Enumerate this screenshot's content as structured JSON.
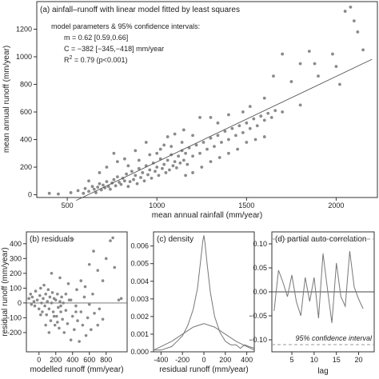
{
  "chart_data": [
    {
      "type": "scatter",
      "title": "(a) ainfall–runoff with linear model fitted by least squares",
      "xlabel": "mean annual rainfall (mm/year)",
      "ylabel": "mean annual runoff (mm/year)",
      "xlim": [
        330,
        2230
      ],
      "ylim": [
        -20,
        1400
      ],
      "xticks": [
        500,
        1000,
        1500,
        2000
      ],
      "yticks": [
        0,
        200,
        400,
        600,
        800,
        1000,
        1200
      ],
      "grid": false,
      "annotation": {
        "header": "model parameters & 95% confidence intervals:",
        "m": "m = 0.62  [0.59,0.66]",
        "c": "C = −382  [−345,−418]  mm/year",
        "r2": "R",
        "r2_sup": "2",
        "r2_rest": " = 0.79  (p<0.001)"
      },
      "fit_line": {
        "slope": 0.62,
        "intercept": -382,
        "x": [
          550,
          2200
        ]
      },
      "point_color": "#8a8a8a",
      "points": [
        [
          400,
          10
        ],
        [
          450,
          5
        ],
        [
          520,
          15
        ],
        [
          560,
          30
        ],
        [
          590,
          10
        ],
        [
          600,
          45
        ],
        [
          620,
          25
        ],
        [
          640,
          60
        ],
        [
          650,
          40
        ],
        [
          660,
          15
        ],
        [
          670,
          55
        ],
        [
          680,
          80
        ],
        [
          690,
          35
        ],
        [
          700,
          70
        ],
        [
          710,
          50
        ],
        [
          720,
          95
        ],
        [
          730,
          60
        ],
        [
          740,
          40
        ],
        [
          750,
          85
        ],
        [
          760,
          110
        ],
        [
          770,
          65
        ],
        [
          780,
          130
        ],
        [
          790,
          90
        ],
        [
          800,
          75
        ],
        [
          810,
          120
        ],
        [
          820,
          100
        ],
        [
          830,
          150
        ],
        [
          840,
          60
        ],
        [
          850,
          95
        ],
        [
          860,
          170
        ],
        [
          870,
          110
        ],
        [
          880,
          140
        ],
        [
          890,
          80
        ],
        [
          900,
          190
        ],
        [
          910,
          125
        ],
        [
          920,
          160
        ],
        [
          930,
          100
        ],
        [
          940,
          210
        ],
        [
          950,
          145
        ],
        [
          960,
          180
        ],
        [
          970,
          120
        ],
        [
          980,
          230
        ],
        [
          990,
          170
        ],
        [
          1000,
          200
        ],
        [
          1010,
          140
        ],
        [
          1020,
          260
        ],
        [
          1030,
          190
        ],
        [
          1040,
          220
        ],
        [
          1050,
          160
        ],
        [
          1060,
          250
        ],
        [
          1070,
          180
        ],
        [
          1080,
          290
        ],
        [
          1090,
          210
        ],
        [
          1100,
          240
        ],
        [
          1110,
          195
        ],
        [
          1120,
          280
        ],
        [
          1130,
          230
        ],
        [
          1140,
          320
        ],
        [
          1150,
          250
        ],
        [
          1160,
          300
        ],
        [
          1170,
          220
        ],
        [
          1180,
          340
        ],
        [
          1200,
          280
        ],
        [
          1220,
          360
        ],
        [
          1240,
          300
        ],
        [
          1260,
          380
        ],
        [
          1280,
          330
        ],
        [
          1300,
          410
        ],
        [
          1320,
          350
        ],
        [
          1340,
          430
        ],
        [
          1360,
          380
        ],
        [
          1380,
          460
        ],
        [
          1400,
          400
        ],
        [
          1420,
          480
        ],
        [
          1440,
          430
        ],
        [
          1460,
          500
        ],
        [
          1480,
          450
        ],
        [
          1500,
          520
        ],
        [
          1520,
          480
        ],
        [
          1540,
          550
        ],
        [
          1560,
          500
        ],
        [
          1580,
          570
        ],
        [
          1600,
          540
        ],
        [
          1620,
          590
        ],
        [
          1640,
          560
        ],
        [
          1660,
          610
        ],
        [
          1700,
          600
        ],
        [
          1750,
          820
        ],
        [
          1800,
          650
        ],
        [
          1850,
          1040
        ],
        [
          1900,
          860
        ],
        [
          1980,
          1020
        ],
        [
          2000,
          930
        ],
        [
          2050,
          1330
        ],
        [
          2080,
          1360
        ],
        [
          2100,
          1260
        ],
        [
          2120,
          1180
        ],
        [
          2150,
          1050
        ],
        [
          1880,
          950
        ],
        [
          2020,
          800
        ],
        [
          760,
          300
        ],
        [
          820,
          260
        ],
        [
          880,
          320
        ],
        [
          940,
          380
        ],
        [
          1000,
          300
        ],
        [
          1040,
          360
        ],
        [
          1060,
          420
        ],
        [
          1100,
          440
        ],
        [
          1150,
          470
        ],
        [
          1200,
          430
        ],
        [
          1240,
          560
        ],
        [
          1300,
          560
        ],
        [
          1340,
          520
        ],
        [
          1400,
          580
        ],
        [
          1480,
          600
        ],
        [
          1520,
          640
        ],
        [
          1600,
          700
        ],
        [
          1650,
          860
        ],
        [
          1700,
          1020
        ],
        [
          1800,
          950
        ],
        [
          620,
          100
        ],
        [
          680,
          160
        ],
        [
          720,
          200
        ],
        [
          780,
          240
        ],
        [
          840,
          210
        ],
        [
          900,
          250
        ],
        [
          960,
          290
        ],
        [
          1020,
          330
        ],
        [
          1080,
          350
        ],
        [
          1140,
          380
        ],
        [
          1160,
          140
        ],
        [
          1200,
          160
        ],
        [
          1250,
          200
        ],
        [
          1300,
          240
        ],
        [
          1350,
          270
        ],
        [
          1400,
          300
        ],
        [
          1450,
          330
        ],
        [
          1500,
          380
        ],
        [
          1550,
          400
        ],
        [
          1600,
          420
        ]
      ]
    },
    {
      "type": "scatter",
      "title": "(b) residuals",
      "xlabel": "modelled runoff (mm/year)",
      "ylabel": "residual runoff (mm/year)",
      "xlim": [
        -150,
        1050
      ],
      "ylim": [
        -330,
        480
      ],
      "xticks": [
        0,
        200,
        400,
        600,
        800
      ],
      "yticks": [
        -200,
        -100,
        0,
        100,
        200,
        300,
        400
      ],
      "point_color": "#8a8a8a",
      "points": [
        [
          -100,
          60
        ],
        [
          -80,
          40
        ],
        [
          -60,
          10
        ],
        [
          -50,
          -20
        ],
        [
          -40,
          80
        ],
        [
          -20,
          20
        ],
        [
          0,
          -40
        ],
        [
          10,
          50
        ],
        [
          20,
          100
        ],
        [
          30,
          0
        ],
        [
          40,
          -60
        ],
        [
          50,
          30
        ],
        [
          60,
          120
        ],
        [
          70,
          -20
        ],
        [
          80,
          60
        ],
        [
          90,
          -80
        ],
        [
          100,
          10
        ],
        [
          110,
          90
        ],
        [
          120,
          -40
        ],
        [
          130,
          40
        ],
        [
          140,
          -120
        ],
        [
          150,
          0
        ],
        [
          160,
          70
        ],
        [
          170,
          -60
        ],
        [
          180,
          30
        ],
        [
          190,
          -150
        ],
        [
          200,
          20
        ],
        [
          210,
          -90
        ],
        [
          220,
          60
        ],
        [
          230,
          -30
        ],
        [
          240,
          -170
        ],
        [
          250,
          10
        ],
        [
          260,
          -60
        ],
        [
          270,
          40
        ],
        [
          280,
          -110
        ],
        [
          290,
          0
        ],
        [
          300,
          -200
        ],
        [
          320,
          -50
        ],
        [
          340,
          -140
        ],
        [
          360,
          20
        ],
        [
          380,
          -250
        ],
        [
          400,
          -90
        ],
        [
          420,
          -180
        ],
        [
          440,
          -20
        ],
        [
          460,
          -120
        ],
        [
          480,
          -260
        ],
        [
          500,
          -60
        ],
        [
          520,
          -150
        ],
        [
          540,
          40
        ],
        [
          560,
          -220
        ],
        [
          580,
          -100
        ],
        [
          600,
          -10
        ],
        [
          620,
          -180
        ],
        [
          640,
          60
        ],
        [
          660,
          -70
        ],
        [
          700,
          220
        ],
        [
          720,
          -40
        ],
        [
          760,
          150
        ],
        [
          800,
          300
        ],
        [
          850,
          420
        ],
        [
          880,
          440
        ],
        [
          900,
          240
        ],
        [
          950,
          20
        ],
        [
          980,
          30
        ],
        [
          400,
          430
        ],
        [
          600,
          260
        ],
        [
          650,
          350
        ],
        [
          700,
          -150
        ],
        [
          760,
          -110
        ],
        [
          150,
          200
        ],
        [
          250,
          170
        ],
        [
          350,
          130
        ],
        [
          450,
          90
        ],
        [
          550,
          110
        ],
        [
          -120,
          30
        ],
        [
          -90,
          -10
        ],
        [
          20,
          -80
        ],
        [
          80,
          -150
        ],
        [
          120,
          -200
        ],
        [
          180,
          -90
        ],
        [
          220,
          -130
        ],
        [
          260,
          -20
        ],
        [
          320,
          60
        ],
        [
          380,
          20
        ],
        [
          440,
          -60
        ],
        [
          500,
          150
        ]
      ]
    },
    {
      "type": "line",
      "title": "(c) density",
      "xlabel": "residual runoff (mm/year)",
      "ylabel": "",
      "xlim": [
        -470,
        470
      ],
      "ylim": [
        0,
        0.0068
      ],
      "xticks": [
        -400,
        -200,
        0,
        200,
        400
      ],
      "yticks": [
        0.0,
        0.001,
        0.002,
        0.003,
        0.004,
        0.005,
        0.006
      ],
      "ytick_labels": [
        "0.000",
        "0.001",
        "0.002",
        "0.003",
        "0.004",
        "0.005",
        "0.006"
      ],
      "series": [
        {
          "values": [
            [
              -470,
              0.0001
            ],
            [
              -400,
              0.0001
            ],
            [
              -350,
              0.0002
            ],
            [
              -300,
              0.0003
            ],
            [
              -250,
              0.0006
            ],
            [
              -200,
              0.0009
            ],
            [
              -150,
              0.0015
            ],
            [
              -100,
              0.0024
            ],
            [
              -60,
              0.0036
            ],
            [
              -30,
              0.0052
            ],
            [
              -10,
              0.0063
            ],
            [
              0,
              0.0066
            ],
            [
              10,
              0.0062
            ],
            [
              30,
              0.005
            ],
            [
              60,
              0.0034
            ],
            [
              100,
              0.002
            ],
            [
              150,
              0.0011
            ],
            [
              200,
              0.0006
            ],
            [
              250,
              0.0004
            ],
            [
              300,
              0.0004
            ],
            [
              340,
              0.0002
            ],
            [
              380,
              0.0004
            ],
            [
              420,
              0.0003
            ],
            [
              470,
              0.0002
            ]
          ]
        },
        {
          "values": [
            [
              -470,
              0.0001
            ],
            [
              -400,
              0.0003
            ],
            [
              -300,
              0.0006
            ],
            [
              -200,
              0.001
            ],
            [
              -100,
              0.0014
            ],
            [
              0,
              0.0016
            ],
            [
              100,
              0.0014
            ],
            [
              200,
              0.001
            ],
            [
              300,
              0.0006
            ],
            [
              400,
              0.0003
            ],
            [
              470,
              0.0001
            ]
          ]
        }
      ]
    },
    {
      "type": "line",
      "title": "(d) partial auto-correlation",
      "xlabel": "lag",
      "ylabel": "",
      "xlim": [
        0.5,
        23.5
      ],
      "ylim": [
        -0.125,
        0.125
      ],
      "xticks": [
        5,
        10,
        15,
        20
      ],
      "yticks": [
        -0.1,
        -0.05,
        0.0,
        0.05,
        0.1
      ],
      "ytick_labels": [
        "−0.10",
        "−0.05",
        "0.00",
        "0.05",
        "0.10"
      ],
      "confidence_label": "95% confidence interval",
      "confidence_band": 0.11,
      "values": [
        -0.04,
        0.045,
        0.02,
        -0.01,
        0.035,
        -0.02,
        -0.05,
        0.03,
        -0.02,
        0.03,
        -0.055,
        0.08,
        0.005,
        -0.065,
        0.06,
        -0.01,
        -0.03,
        0.085,
        0.01,
        -0.015,
        -0.035
      ]
    }
  ]
}
